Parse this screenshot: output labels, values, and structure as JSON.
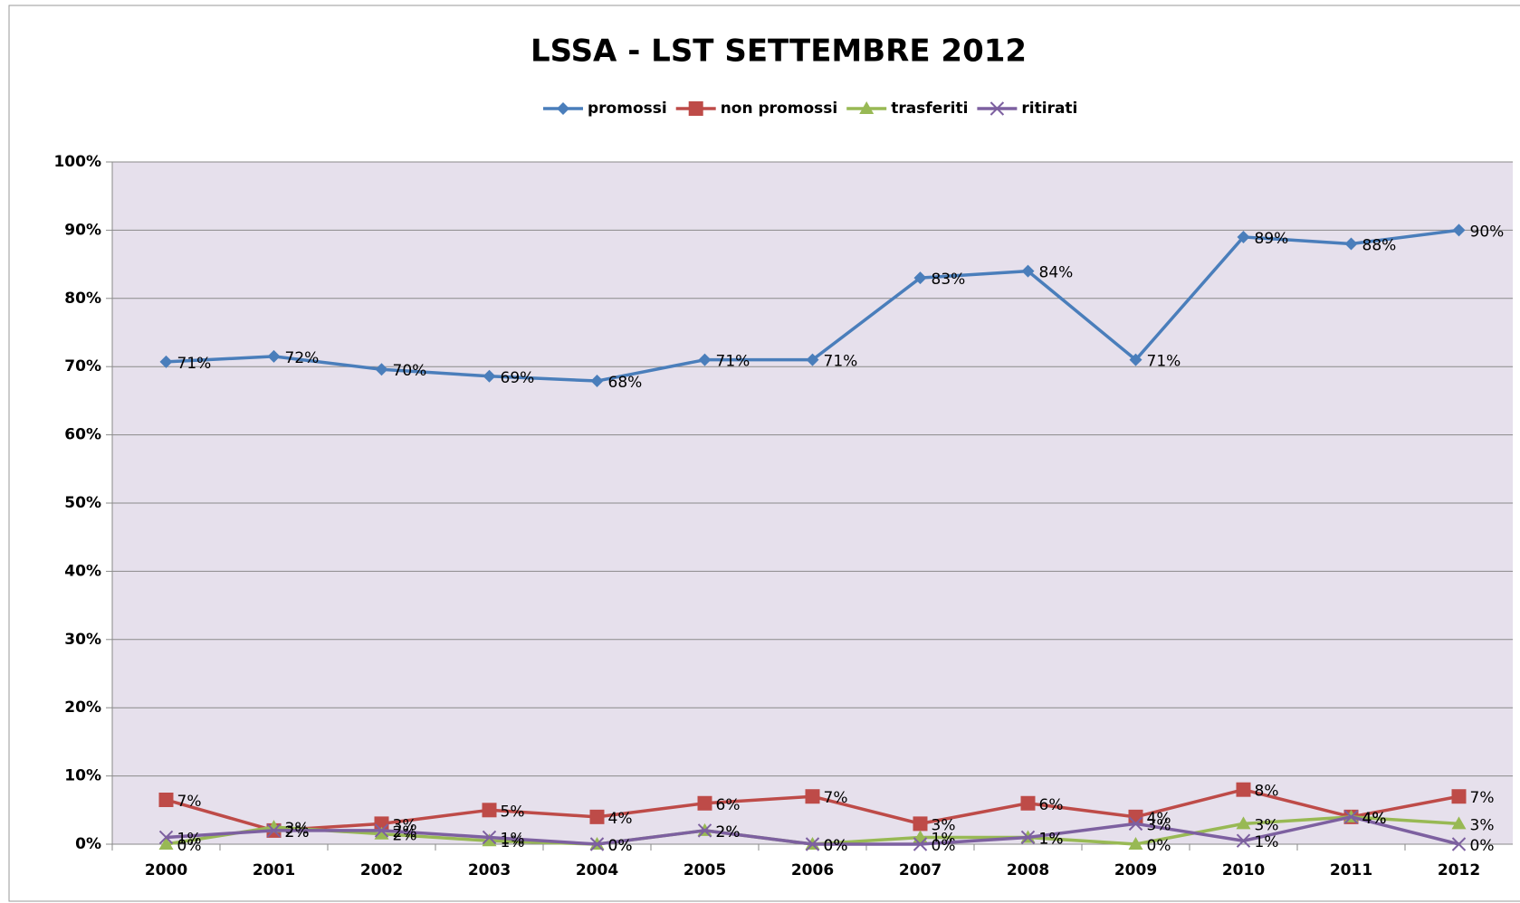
{
  "chart_data": {
    "type": "line",
    "title": "LSSA - LST SETTEMBRE  2012",
    "categories": [
      "2000",
      "2001",
      "2002",
      "2003",
      "2004",
      "2005",
      "2006",
      "2007",
      "2008",
      "2009",
      "2010",
      "2011",
      "2012"
    ],
    "series": [
      {
        "name": "promossi",
        "color": "#4a7ebb",
        "marker": "diamond",
        "values": [
          70.7,
          71.5,
          69.6,
          68.6,
          67.9,
          71,
          71,
          83,
          84,
          71,
          89,
          88,
          90
        ],
        "value_labels": [
          "71%",
          "72%",
          "70%",
          "69%",
          "68%",
          "71%",
          "71%",
          "83%",
          "84%",
          "71%",
          "89%",
          "88%",
          "90%"
        ]
      },
      {
        "name": "non promossi",
        "color": "#be4b48",
        "marker": "square",
        "values": [
          6.5,
          2,
          3,
          5,
          4,
          6,
          7,
          3,
          6,
          4,
          8,
          4,
          7
        ],
        "value_labels": [
          "7%",
          "2%",
          "3%",
          "5%",
          "4%",
          "6%",
          "7%",
          "3%",
          "6%",
          "4%",
          "8%",
          "4%",
          "7%"
        ]
      },
      {
        "name": "trasferiti",
        "color": "#98b954",
        "marker": "triangle",
        "values": [
          0,
          2.5,
          1.5,
          0.5,
          0,
          2,
          0,
          1,
          1,
          0,
          3,
          4,
          3
        ],
        "value_labels": [
          "0%",
          "3%",
          "2%",
          "1%",
          "0%",
          "2%",
          "0%",
          "1%",
          "1%",
          "0%",
          "3%",
          "4%",
          "3%"
        ]
      },
      {
        "name": "ritirati",
        "color": "#7d60a0",
        "marker": "x",
        "values": [
          1,
          2,
          2,
          1,
          0,
          2,
          0,
          0,
          1,
          3,
          0.5,
          4,
          0
        ],
        "value_labels": [
          "1%",
          "2%",
          "2%",
          "1%",
          "0%",
          "2%",
          "0%",
          "0%",
          "1%",
          "3%",
          "1%",
          "4%",
          "0%"
        ]
      }
    ],
    "ylim": [
      0,
      100
    ],
    "yticks": [
      {
        "value": 0,
        "label": "0%"
      },
      {
        "value": 10,
        "label": "10%"
      },
      {
        "value": 20,
        "label": "20%"
      },
      {
        "value": 30,
        "label": "30%"
      },
      {
        "value": 40,
        "label": "40%"
      },
      {
        "value": 50,
        "label": "50%"
      },
      {
        "value": 60,
        "label": "60%"
      },
      {
        "value": 70,
        "label": "70%"
      },
      {
        "value": 80,
        "label": "80%"
      },
      {
        "value": 90,
        "label": "90%"
      },
      {
        "value": 100,
        "label": "100%"
      }
    ],
    "grid": true,
    "legend": "top",
    "plot_background": "#e6e0ec"
  }
}
